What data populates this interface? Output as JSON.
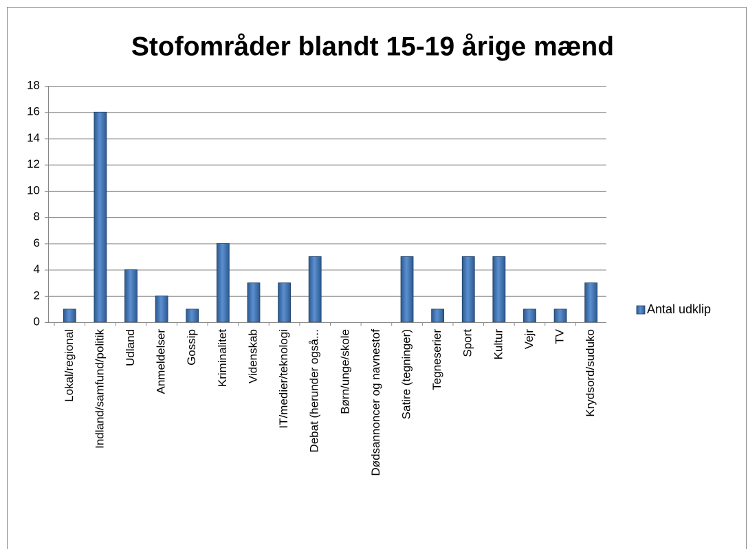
{
  "chart_data": {
    "type": "bar",
    "title": "Stofområder blandt 15-19 årige mænd",
    "categories": [
      "Lokal/regional",
      "Indland/samfund/politik",
      "Udland",
      "Anmeldelser",
      "Gossip",
      "Kriminalitet",
      "Videnskab",
      "IT/medier/teknologi",
      "Debat (herunder også...",
      "Børn/unge/skole",
      "Dødsannoncer og navnestof",
      "Satire (tegninger)",
      "Tegneserier",
      "Sport",
      "Kultur",
      "Vejr",
      "TV",
      "Krydsord/suduko"
    ],
    "series": [
      {
        "name": "Antal udklip",
        "color": "#4f81bd",
        "values": [
          1,
          16,
          4,
          2,
          1,
          6,
          3,
          3,
          5,
          0,
          0,
          5,
          1,
          5,
          5,
          1,
          1,
          3
        ]
      }
    ],
    "ylim": [
      0,
      18
    ],
    "yticks": [
      0,
      2,
      4,
      6,
      8,
      10,
      12,
      14,
      16,
      18
    ],
    "grid": true,
    "legend": "right"
  }
}
